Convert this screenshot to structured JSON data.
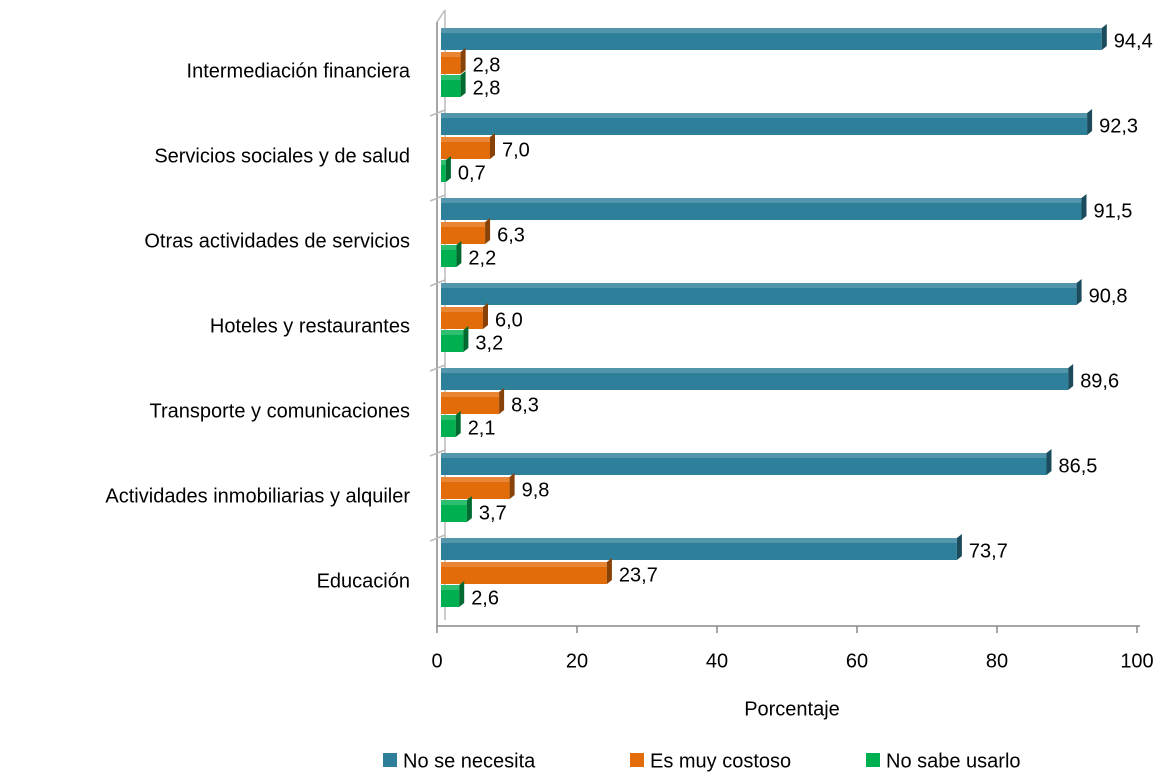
{
  "chart_data": {
    "type": "bar",
    "orientation": "horizontal",
    "xlabel": "Porcentaje",
    "categories": [
      "Intermediación financiera",
      "Servicios sociales y de salud",
      "Otras actividades de servicios",
      "Hoteles y restaurantes",
      "Transporte y comunicaciones",
      "Actividades inmobiliarias y  alquiler",
      "Educación"
    ],
    "series": [
      {
        "name": "No se necesita",
        "color": "#2e7f99",
        "values": [
          94.4,
          92.3,
          91.5,
          90.8,
          89.6,
          86.5,
          73.7
        ],
        "value_labels": [
          "94,4",
          "92,3",
          "91,5",
          "90,8",
          "89,6",
          "86,5",
          "73,7"
        ]
      },
      {
        "name": "Es muy costoso",
        "color": "#e36c0a",
        "values": [
          2.8,
          7.0,
          6.3,
          6.0,
          8.3,
          9.8,
          23.7
        ],
        "value_labels": [
          "2,8",
          "7,0",
          "6,3",
          "6,0",
          "8,3",
          "9,8",
          "23,7"
        ]
      },
      {
        "name": "No sabe usarlo",
        "color": "#00b050",
        "values": [
          2.8,
          0.7,
          2.2,
          3.2,
          2.1,
          3.7,
          2.6
        ],
        "value_labels": [
          "2,8",
          "0,7",
          "2,2",
          "3,2",
          "2,1",
          "3,7",
          "2,6"
        ]
      }
    ],
    "xlim": [
      0,
      100
    ],
    "xticks": [
      0,
      20,
      40,
      60,
      80,
      100
    ],
    "legend": "bottom"
  }
}
